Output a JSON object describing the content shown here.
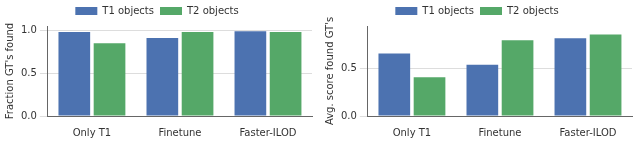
{
  "chart_data": [
    {
      "type": "bar",
      "ylabel": "Fraction GT's found",
      "categories": [
        "Only T1",
        "Finetune",
        "Faster-ILOD"
      ],
      "series": [
        {
          "name": "T1 objects",
          "color": "#4c72b0",
          "values": [
            0.98,
            0.91,
            0.99
          ]
        },
        {
          "name": "T2 objects",
          "color": "#55a868",
          "values": [
            0.85,
            0.98,
            0.98
          ]
        }
      ],
      "ylim": [
        0,
        1.05
      ],
      "yticks": [
        {
          "value": 0,
          "label": "0.0"
        },
        {
          "value": 0.5,
          "label": "0.5"
        },
        {
          "value": 1,
          "label": "1.0"
        }
      ],
      "grid": true,
      "legend": "top"
    },
    {
      "type": "bar",
      "ylabel": "Avg. score found GT's",
      "categories": [
        "Only T1",
        "Finetune",
        "Faster-ILOD"
      ],
      "series": [
        {
          "name": "T1 objects",
          "color": "#4c72b0",
          "values": [
            0.66,
            0.54,
            0.82
          ]
        },
        {
          "name": "T2 objects",
          "color": "#55a868",
          "values": [
            0.41,
            0.8,
            0.86
          ]
        }
      ],
      "ylim": [
        0,
        0.95
      ],
      "yticks": [
        {
          "value": 0,
          "label": "0.0"
        },
        {
          "value": 0.5,
          "label": "0.5"
        }
      ],
      "grid": true,
      "legend": "top"
    }
  ]
}
